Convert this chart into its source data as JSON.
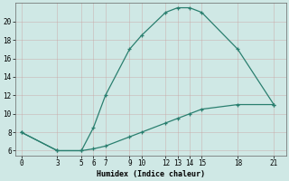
{
  "xlabel": "Humidex (Indice chaleur)",
  "bg_color": "#cfe8e5",
  "line_color": "#2a7f6f",
  "upper_x": [
    0,
    3,
    5,
    6,
    7,
    9,
    10,
    12,
    13,
    14,
    15,
    18,
    21
  ],
  "upper_y": [
    8,
    6,
    6,
    8.5,
    12,
    17,
    18.5,
    21,
    21.5,
    21.5,
    21,
    17,
    11
  ],
  "lower_x": [
    0,
    3,
    5,
    6,
    7,
    9,
    10,
    12,
    13,
    14,
    15,
    18,
    21
  ],
  "lower_y": [
    8,
    6,
    6,
    6.2,
    6.5,
    7.5,
    8,
    9,
    9.5,
    10,
    10.5,
    11,
    11
  ],
  "xticks": [
    0,
    3,
    5,
    6,
    7,
    9,
    10,
    12,
    13,
    14,
    15,
    18,
    21
  ],
  "yticks": [
    6,
    8,
    10,
    12,
    14,
    16,
    18,
    20
  ],
  "ylim": [
    5.5,
    22
  ],
  "xlim": [
    -0.5,
    22
  ]
}
